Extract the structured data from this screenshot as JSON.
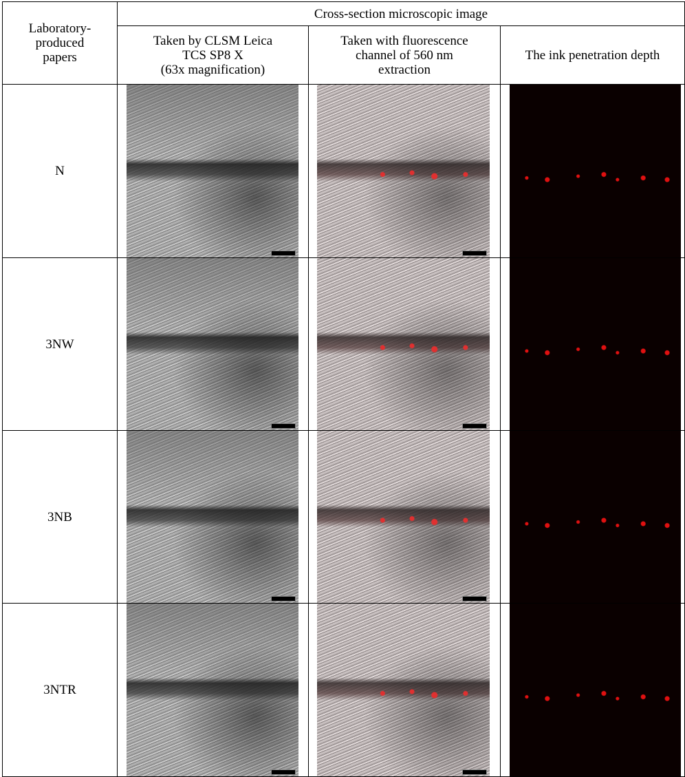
{
  "table": {
    "header": {
      "row_header": [
        "Laboratory-",
        "produced",
        "papers"
      ],
      "group": "Cross-section microscopic image",
      "columns": [
        [
          "Taken by CLSM Leica",
          "TCS SP8 X",
          "(63x magnification)"
        ],
        [
          "Taken with fluorescence",
          "channel of 560 nm",
          "extraction"
        ],
        [
          "The ink penetration depth"
        ]
      ]
    },
    "rows": [
      "N",
      "3NW",
      "3NB",
      "3NTR"
    ]
  }
}
